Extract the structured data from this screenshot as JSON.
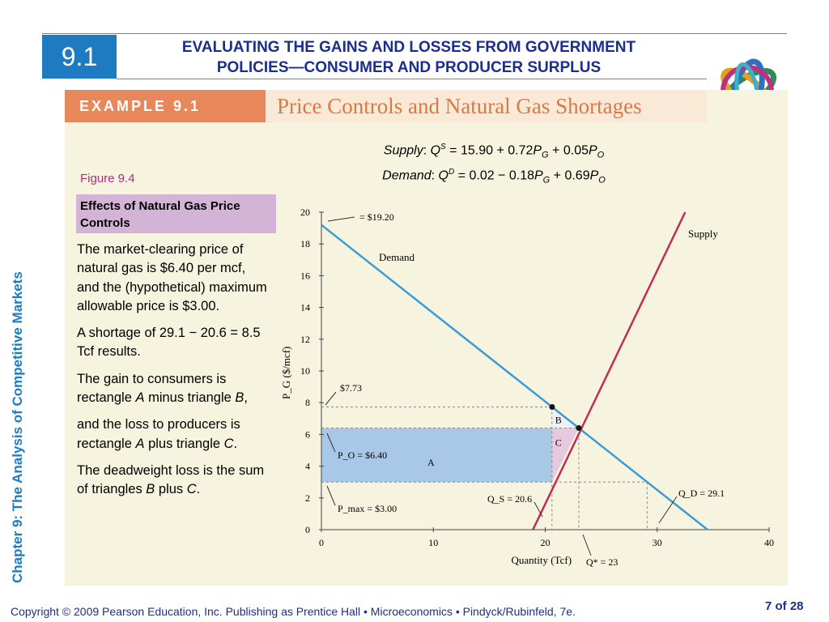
{
  "section_number": "9.1",
  "title_line1": "EVALUATING THE GAINS AND LOSSES FROM GOVERNMENT",
  "title_line2": "POLICIES—CONSUMER AND PRODUCER SURPLUS",
  "example_tag": "EXAMPLE 9.1",
  "example_title": "Price Controls and Natural Gas Shortages",
  "side_label": "Chapter 9:  The Analysis of Competitive Markets",
  "equations": {
    "supply_label": "Supply",
    "demand_label": "Demand"
  },
  "figure_label": "Figure 9.4",
  "figure_caption": "Effects of Natural Gas Price Controls",
  "body": {
    "p1": "The market-clearing price of natural gas is $6.40 per mcf, and the (hypothetical) maximum allowable price is $3.00.",
    "p2": "A shortage of 29.1 − 20.6 = 8.5 Tcf results.",
    "p3a": "The gain to consumers is rectangle ",
    "p3b": " minus triangle ",
    "p3c": ",",
    "p4a": "and the loss to producers is rectangle ",
    "p4b": " plus triangle ",
    "p4c": ".",
    "p5a": "The deadweight loss is the sum of triangles ",
    "p5b": " plus ",
    "p5c": ".",
    "A": "A",
    "B": "B",
    "C": "C"
  },
  "chart_data": {
    "type": "line",
    "xlabel": "Quantity (Tcf)",
    "ylabel": "P_G ($/mcf)",
    "xlim": [
      0,
      40
    ],
    "ylim": [
      0,
      20
    ],
    "x_ticks": [
      "0",
      "10",
      "20",
      "30",
      "40"
    ],
    "y_ticks": [
      "0",
      "2",
      "4",
      "6",
      "8",
      "10",
      "12",
      "14",
      "16",
      "18",
      "20"
    ],
    "series": [
      {
        "name": "Demand",
        "color": "#3a9bd6",
        "points": [
          [
            0,
            19.2
          ],
          [
            34.5,
            0
          ]
        ]
      },
      {
        "name": "Supply",
        "color": "#c22d55",
        "points": [
          [
            18.9,
            0
          ],
          [
            32.5,
            20
          ]
        ]
      }
    ],
    "equilibrium": {
      "x": 23,
      "y": 6.4
    },
    "price_ceiling": 3.0,
    "demand_at_ceiling": 29.1,
    "supply_at_ceiling": 20.6,
    "high_price": 7.73,
    "regions": {
      "A": "A",
      "B": "B",
      "C": "C"
    },
    "annotations": {
      "intercept": "= $19.20",
      "high_price": "$7.73",
      "po": "P_O = $6.40",
      "pmax": "P_max = $3.00",
      "qs": "Q_S = 20.6",
      "qd": "Q_D = 29.1",
      "qstar": "Q* = 23"
    },
    "colors": {
      "area_A": "#a9c8e8",
      "area_C": "#e6c8df",
      "grid_dash": "#888888"
    }
  },
  "footer": "Copyright © 2009 Pearson Education, Inc. Publishing as Prentice Hall  •  Microeconomics  •  Pindyck/Rubinfeld, 7e.",
  "page_number": "7 of 28"
}
